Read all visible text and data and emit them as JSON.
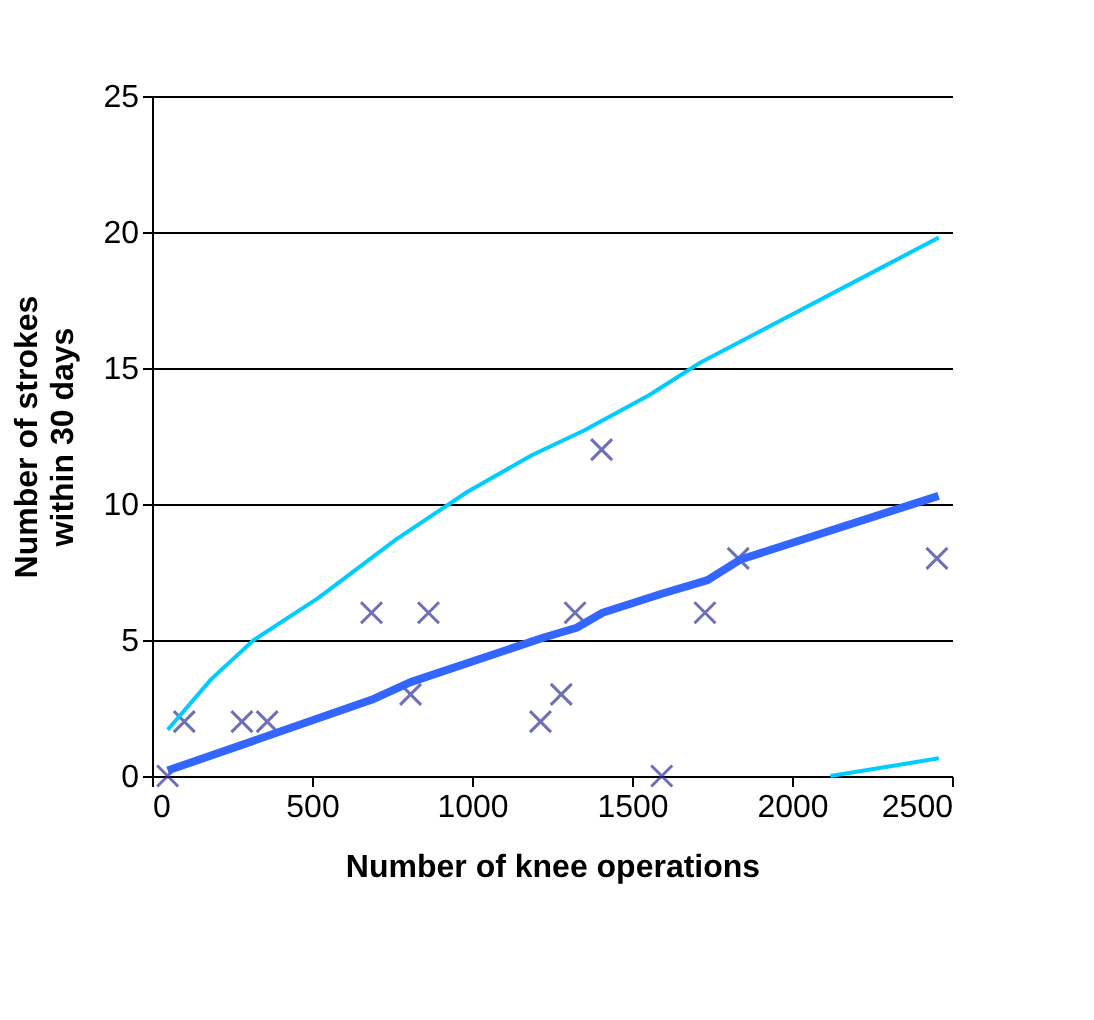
{
  "chart_data": {
    "type": "scatter",
    "xlabel": "Number of knee operations",
    "ylabel": "Number of strokes\nwithin 30  days",
    "xlim": [
      0,
      2500
    ],
    "ylim": [
      0,
      25
    ],
    "xticks": [
      0,
      500,
      {
        "value": 1000,
        "label": "1000"
      },
      {
        "value": 1500,
        "label": "1500"
      },
      {
        "value": 2000,
        "label": "2000"
      },
      {
        "value": 2500,
        "label": "2500"
      }
    ],
    "yticks": [
      0,
      5,
      10,
      15,
      20,
      25
    ],
    "grid": "y",
    "series": [
      {
        "marker": "cross",
        "color": "#333399",
        "x": [
          49,
          101,
          281,
          360,
          686,
          808,
          864,
          1214,
          1279,
          1322,
          1405,
          1593,
          1728,
          1832,
          2453
        ],
        "values": [
          0,
          2,
          2,
          2,
          6,
          3,
          6,
          2,
          3,
          6,
          12,
          0,
          6,
          8,
          8
        ]
      },
      {
        "type": "line",
        "color": "#3366ff",
        "x": [
          49,
          686,
          808,
          1227,
          1327,
          1408,
          1593,
          1736,
          1837,
          2458
        ],
        "values": [
          0.2,
          2.8,
          3.45,
          5.1,
          5.45,
          6.0,
          6.7,
          7.2,
          7.95,
          10.3
        ]
      },
      {
        "type": "line",
        "color": "#00ccff",
        "x": [
          49,
          186,
          318,
          520,
          763,
          986,
          1188,
          1350,
          1553,
          1714,
          1957,
          2281,
          2459
        ],
        "values": [
          1.7,
          3.57,
          5.0,
          6.55,
          8.7,
          10.45,
          11.8,
          12.7,
          14.0,
          15.2,
          16.7,
          18.7,
          19.8
        ]
      },
      {
        "type": "line",
        "color": "#00ccff",
        "x": [
          2120,
          2459
        ],
        "values": [
          0,
          0.65
        ]
      }
    ]
  }
}
